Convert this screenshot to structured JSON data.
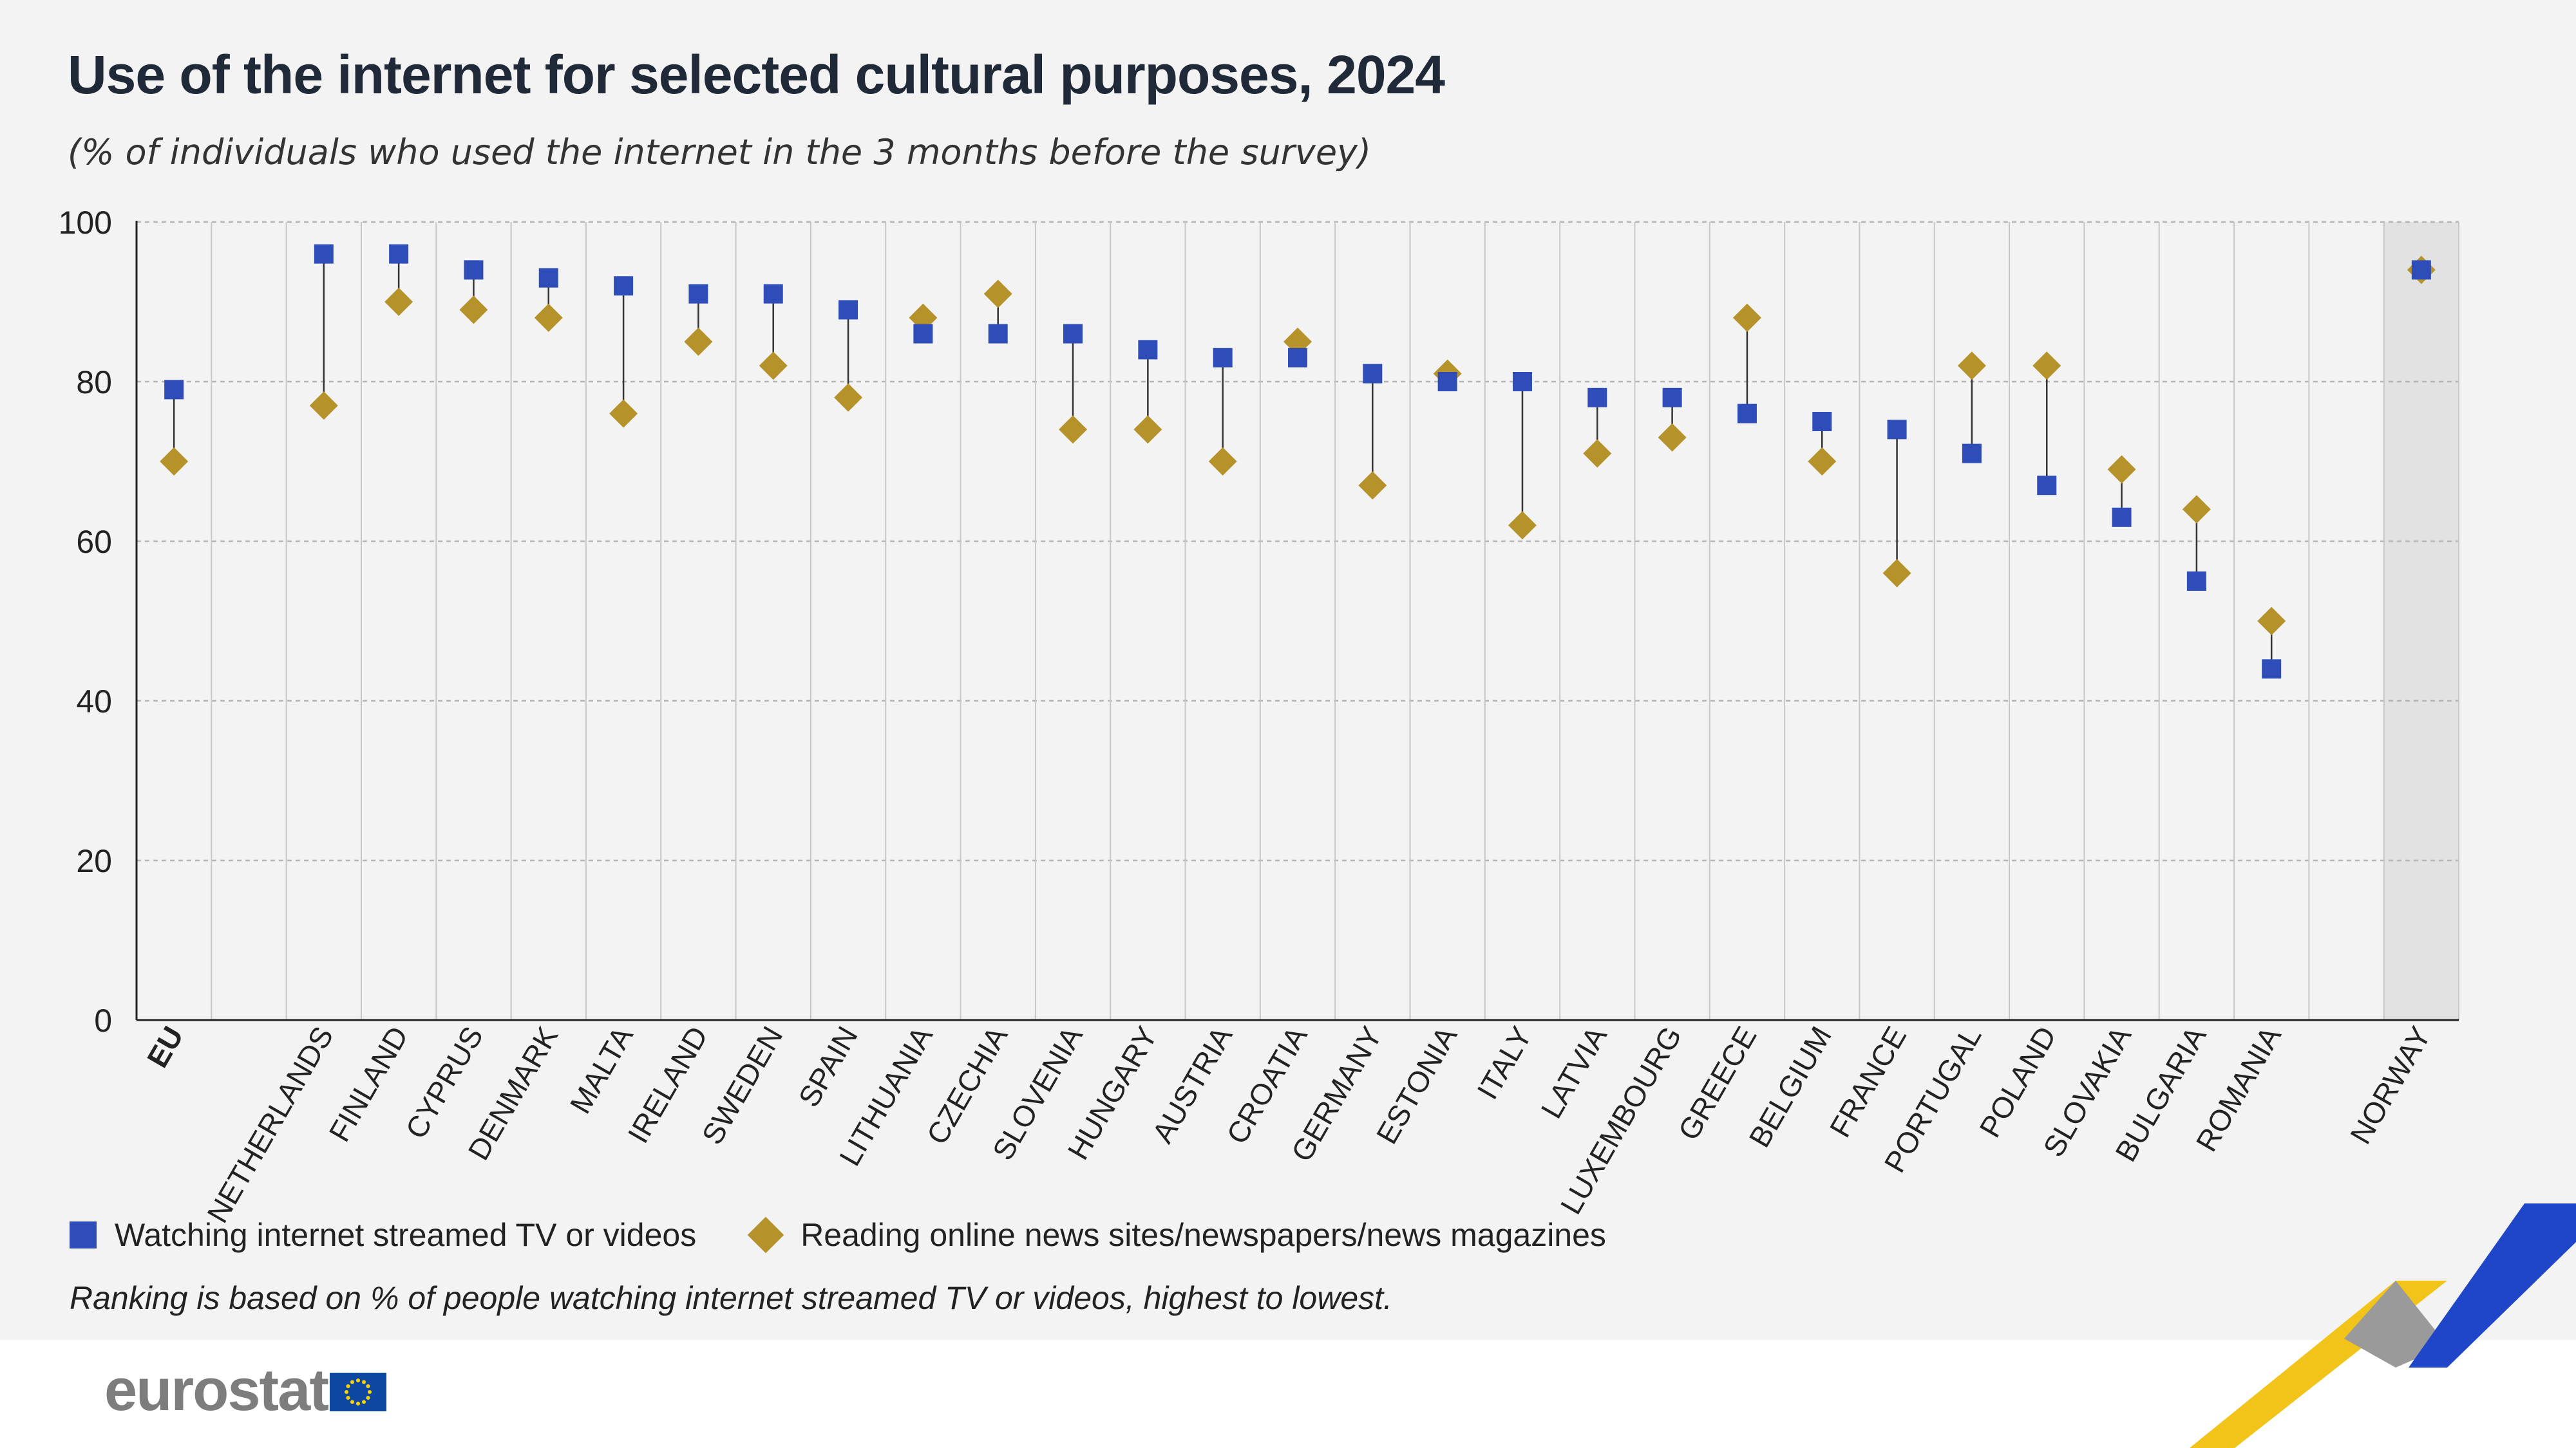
{
  "header": {
    "title": "Use of the internet for selected cultural purposes, 2024",
    "subtitle": "(% of individuals who used the internet in the 3 months before the survey)"
  },
  "legend": {
    "series1": "Watching internet streamed TV or videos",
    "series2": "Reading online news sites/newspapers/news magazines"
  },
  "note": "Ranking is based on % of people watching internet streamed TV or videos, highest to lowest.",
  "footer": {
    "logo": "eurostat"
  },
  "colors": {
    "series1": "#2f4db8",
    "series2": "#b5922a",
    "grid": "#b5b5b5",
    "highlight": "#e2e2e2"
  },
  "chart_data": {
    "type": "scatter",
    "ylim": [
      0,
      100
    ],
    "yticks": [
      0,
      20,
      40,
      60,
      80,
      100
    ],
    "grid": true,
    "legend_position": "bottom",
    "categories": [
      "EU",
      "",
      "NETHERLANDS",
      "FINLAND",
      "CYPRUS",
      "DENMARK",
      "MALTA",
      "IRELAND",
      "SWEDEN",
      "SPAIN",
      "LITHUANIA",
      "CZECHIA",
      "SLOVENIA",
      "HUNGARY",
      "AUSTRIA",
      "CROATIA",
      "GERMANY",
      "ESTONIA",
      "ITALY",
      "LATVIA",
      "LUXEMBOURG",
      "GREECE",
      "BELGIUM",
      "FRANCE",
      "PORTUGAL",
      "POLAND",
      "SLOVAKIA",
      "BULGARIA",
      "ROMANIA",
      "",
      "NORWAY"
    ],
    "series": [
      {
        "name": "Watching internet streamed TV or videos",
        "marker": "square",
        "values": [
          79,
          null,
          96,
          96,
          94,
          93,
          92,
          91,
          91,
          89,
          86,
          86,
          86,
          84,
          83,
          83,
          81,
          80,
          80,
          78,
          78,
          76,
          75,
          74,
          71,
          67,
          63,
          55,
          44,
          null,
          94
        ]
      },
      {
        "name": "Reading online news sites/newspapers/news magazines",
        "marker": "diamond",
        "values": [
          70,
          null,
          77,
          90,
          89,
          88,
          76,
          85,
          82,
          78,
          88,
          91,
          74,
          74,
          70,
          85,
          67,
          81,
          62,
          71,
          73,
          88,
          70,
          56,
          82,
          82,
          69,
          64,
          50,
          null,
          94
        ]
      }
    ],
    "bold_categories": [
      "EU"
    ],
    "highlighted_category": "NORWAY"
  }
}
